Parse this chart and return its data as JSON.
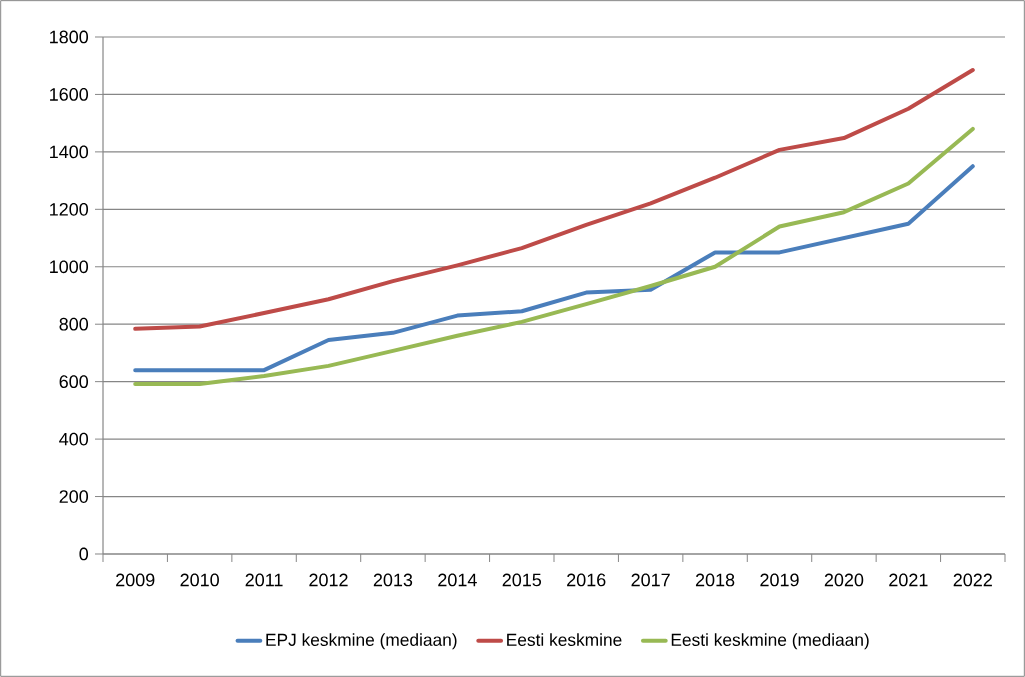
{
  "chart_data": {
    "type": "line",
    "categories": [
      "2009",
      "2010",
      "2011",
      "2012",
      "2013",
      "2014",
      "2015",
      "2016",
      "2017",
      "2018",
      "2019",
      "2020",
      "2021",
      "2022"
    ],
    "series": [
      {
        "name": "EPJ keskmine (mediaan)",
        "color": "#4a7ebb",
        "values": [
          640,
          640,
          640,
          745,
          770,
          830,
          845,
          910,
          920,
          1050,
          1050,
          1100,
          1150,
          1350
        ]
      },
      {
        "name": "Eesti keskmine",
        "color": "#be4b48",
        "values": [
          784,
          792,
          839,
          887,
          950,
          1005,
          1065,
          1146,
          1221,
          1310,
          1407,
          1448,
          1550,
          1685
        ]
      },
      {
        "name": "Eesti keskmine (mediaan)",
        "color": "#98b954",
        "values": [
          592,
          592,
          620,
          655,
          707,
          760,
          808,
          870,
          933,
          1000,
          1140,
          1190,
          1290,
          1480
        ]
      }
    ],
    "ylim": [
      0,
      1800
    ],
    "yticks": [
      0,
      200,
      400,
      600,
      800,
      1000,
      1200,
      1400,
      1600,
      1800
    ],
    "grid": "y",
    "legend": "bottom",
    "marker": "none",
    "line_style": "solid"
  }
}
